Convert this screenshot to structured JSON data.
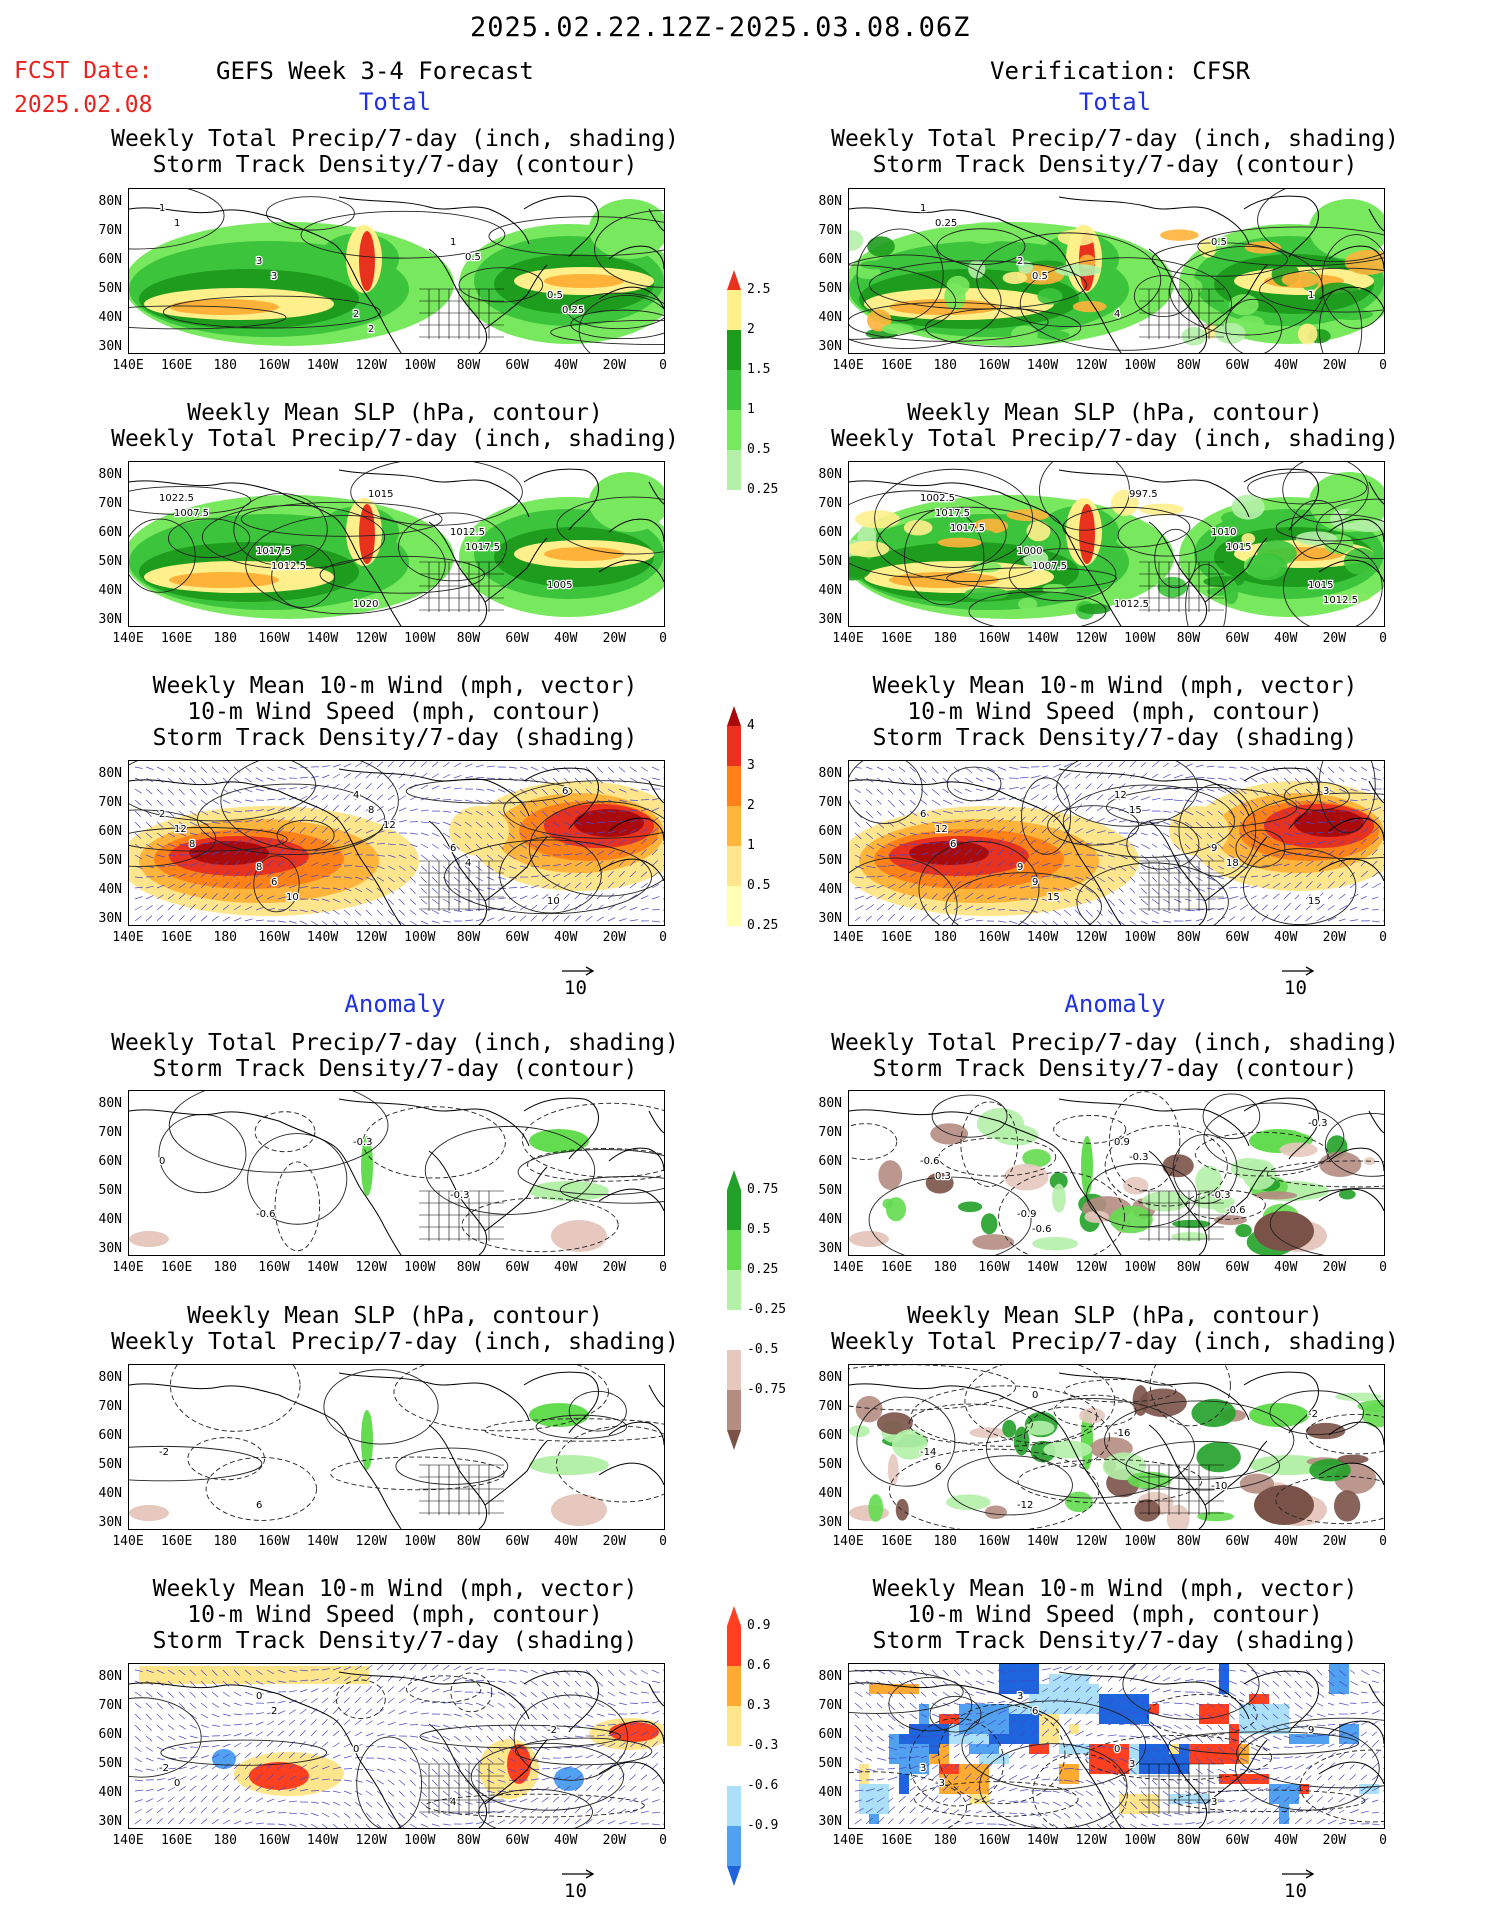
{
  "header": {
    "period": "2025.02.22.12Z-2025.03.08.06Z",
    "fcst_label": "FCST Date:",
    "fcst_date": "2025.02.08",
    "left_title": "GEFS Week 3-4 Forecast",
    "right_title": "Verification: CFSR"
  },
  "sections": {
    "total": "Total",
    "anomaly": "Anomaly"
  },
  "panel_titles": {
    "precip_storm": [
      "Weekly Total Precip/7-day (inch, shading)",
      "Storm Track Density/7-day (contour)"
    ],
    "slp_precip": [
      "Weekly Mean SLP (hPa, contour)",
      "Weekly Total Precip/7-day (inch, shading)"
    ],
    "wind_storm": [
      "Weekly Mean 10-m Wind (mph, vector)",
      "10-m Wind Speed (mph, contour)",
      "Storm Track Density/7-day (shading)"
    ]
  },
  "axes": {
    "lat_labels": [
      "80N",
      "70N",
      "60N",
      "50N",
      "40N",
      "30N"
    ],
    "lon_labels": [
      "140E",
      "160E",
      "180",
      "160W",
      "140W",
      "120W",
      "100W",
      "80W",
      "60W",
      "40W",
      "20W",
      "0"
    ]
  },
  "vector_ref": {
    "label": "10"
  },
  "colorbars": {
    "precip_total": [
      "0.25",
      "0.5",
      "1",
      "1.5",
      "2",
      "2.5"
    ],
    "storm_total": [
      "0.25",
      "0.5",
      "1",
      "2",
      "3",
      "4"
    ],
    "precip_anom": [
      "-0.75",
      "-0.5",
      "-0.25",
      "0.25",
      "0.5",
      "0.75"
    ],
    "storm_anom": [
      "-0.9",
      "-0.6",
      "-0.3",
      "0.3",
      "0.6",
      "0.9"
    ]
  },
  "colors": {
    "precip_levels": [
      "#b4f0a8",
      "#78e85e",
      "#3cc43c",
      "#1e9c1e",
      "#fff08c",
      "#ffb23a",
      "#e8321e"
    ],
    "storm_levels": [
      "#ffffb4",
      "#ffe68c",
      "#ffb43c",
      "#ff8218",
      "#e6321e",
      "#aa0a0a"
    ],
    "anom_neg": [
      "#e6c8be",
      "#b48c82",
      "#7a5248"
    ],
    "anom_pos": [
      "#b4f0a8",
      "#64dc50",
      "#22a028"
    ],
    "storm_anom_neg": [
      "#ace0f8",
      "#52a0f0",
      "#1e64dc"
    ],
    "storm_anom_pos": [
      "#ffe68c",
      "#ffaa32",
      "#ff4020"
    ],
    "red_text": "#e8221c",
    "blue_text": "#2233dd"
  },
  "panels": [
    {
      "id": "fcst-total-precip",
      "labels": [
        "1",
        "3",
        "2",
        "1",
        "0.5",
        "1",
        "3",
        "2",
        "0.5",
        "0.25"
      ]
    },
    {
      "id": "fcst-total-slp",
      "labels": [
        "1022.5",
        "1017.5",
        "1020",
        "1012.5",
        "1005",
        "1007.5",
        "1012.5",
        "1015",
        "1017.5"
      ]
    },
    {
      "id": "fcst-total-wind",
      "labels": [
        "2",
        "8",
        "4",
        "6",
        "10",
        "12",
        "6",
        "8",
        "4",
        "6",
        "8",
        "10",
        "12"
      ]
    },
    {
      "id": "fcst-anom-precip",
      "labels": [
        "0",
        "-0.6",
        "-0.3",
        "-0.3"
      ]
    },
    {
      "id": "fcst-anom-slp",
      "labels": [
        "-2",
        "6"
      ]
    },
    {
      "id": "fcst-anom-wind",
      "labels": [
        "-2",
        "0",
        "0",
        "4",
        "-2",
        "0",
        "2"
      ]
    },
    {
      "id": "ver-total-precip",
      "labels": [
        "1",
        "2",
        "4",
        "0.5",
        "1",
        "0.25",
        "0.5"
      ]
    },
    {
      "id": "ver-total-slp",
      "labels": [
        "1002.5",
        "1000",
        "1012.5",
        "1010",
        "1015",
        "1017.5",
        "1007.5",
        "997.5",
        "1015",
        "1012.5",
        "1017.5"
      ]
    },
    {
      "id": "ver-total-wind",
      "labels": [
        "6",
        "9",
        "12",
        "9",
        "15",
        "12",
        "9",
        "15",
        "18",
        "3",
        "6",
        "15"
      ]
    },
    {
      "id": "ver-anom-precip",
      "labels": [
        "-0.6",
        "-0.9",
        "0.9",
        "-0.3",
        "-0.3",
        "0.3",
        "-0.6",
        "-0.3",
        "-0.6"
      ]
    },
    {
      "id": "ver-anom-slp",
      "labels": [
        "-14",
        "-12",
        "-16",
        "-10",
        "-2",
        "6",
        "0"
      ]
    },
    {
      "id": "ver-anom-wind",
      "labels": [
        "3",
        "3",
        "0",
        "3",
        "9",
        "-3",
        "6",
        "3"
      ]
    }
  ]
}
